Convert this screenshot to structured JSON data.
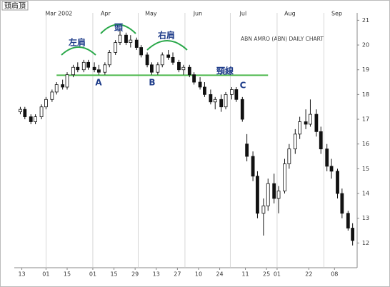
{
  "chart_data": {
    "type": "candlestick",
    "page_title": "頭肩頂",
    "chart_label": "ABN AMRO (ABN) DAILY CHART",
    "x": [
      "2002-02-12",
      "2002-02-15",
      "2002-02-19",
      "2002-02-22",
      "2002-02-26",
      "2002-03-01",
      "2002-03-05",
      "2002-03-08",
      "2002-03-12",
      "2002-03-15",
      "2002-03-19",
      "2002-03-22",
      "2002-03-26",
      "2002-03-29",
      "2002-04-02",
      "2002-04-05",
      "2002-04-09",
      "2002-04-12",
      "2002-04-16",
      "2002-04-19",
      "2002-04-23",
      "2002-04-26",
      "2002-04-30",
      "2002-05-03",
      "2002-05-07",
      "2002-05-10",
      "2002-05-14",
      "2002-05-17",
      "2002-05-21",
      "2002-05-24",
      "2002-05-28",
      "2002-05-31",
      "2002-06-04",
      "2002-06-07",
      "2002-06-11",
      "2002-06-14",
      "2002-06-18",
      "2002-06-21",
      "2002-06-25",
      "2002-06-28",
      "2002-07-02",
      "2002-07-05",
      "2002-07-09",
      "2002-07-12",
      "2002-07-16",
      "2002-07-19",
      "2002-07-23",
      "2002-07-26",
      "2002-07-30",
      "2002-08-02",
      "2002-08-06",
      "2002-08-09",
      "2002-08-13",
      "2002-08-16",
      "2002-08-20",
      "2002-08-23",
      "2002-08-27",
      "2002-08-30",
      "2002-09-03",
      "2002-09-06",
      "2002-09-10",
      "2002-09-13",
      "2002-09-17",
      "2002-09-20"
    ],
    "open": [
      17.3,
      17.4,
      17.1,
      16.9,
      17.1,
      17.5,
      17.8,
      18.1,
      18.4,
      18.3,
      18.8,
      19.1,
      19.0,
      19.3,
      19.1,
      19.0,
      18.9,
      19.2,
      19.7,
      20.1,
      20.4,
      20.1,
      20.2,
      19.9,
      19.6,
      19.2,
      18.9,
      19.2,
      19.6,
      19.5,
      19.3,
      19.0,
      19.1,
      18.8,
      18.5,
      18.3,
      18.0,
      17.7,
      17.8,
      17.5,
      18.0,
      18.2,
      17.8,
      16.0,
      15.5,
      14.7,
      13.2,
      13.5,
      14.4,
      13.8,
      14.1,
      15.2,
      15.8,
      16.4,
      16.9,
      16.8,
      17.2,
      16.5,
      15.8,
      15.1,
      14.9,
      14.0,
      13.2,
      12.6
    ],
    "high": [
      17.5,
      17.5,
      17.2,
      17.2,
      17.6,
      17.9,
      18.2,
      18.5,
      18.6,
      18.9,
      19.2,
      19.3,
      19.4,
      19.4,
      19.3,
      19.2,
      19.3,
      19.8,
      20.2,
      20.6,
      20.5,
      20.4,
      20.3,
      20.0,
      19.7,
      19.3,
      19.3,
      19.7,
      19.8,
      19.7,
      19.4,
      19.2,
      19.2,
      18.9,
      18.7,
      18.5,
      18.2,
      17.9,
      18.0,
      18.1,
      18.3,
      18.3,
      17.9,
      16.4,
      15.7,
      14.9,
      13.8,
      14.6,
      14.8,
      14.3,
      15.4,
      16.0,
      16.6,
      17.1,
      17.4,
      17.8,
      17.4,
      16.7,
      16.0,
      15.4,
      15.0,
      14.2,
      13.3,
      12.8
    ],
    "low": [
      17.2,
      17.0,
      16.8,
      16.8,
      17.0,
      17.4,
      17.7,
      18.0,
      18.2,
      18.2,
      18.7,
      18.9,
      18.9,
      19.0,
      18.9,
      18.8,
      18.8,
      19.1,
      19.6,
      20.0,
      20.0,
      19.9,
      19.8,
      19.5,
      19.1,
      18.8,
      18.8,
      19.1,
      19.4,
      19.2,
      18.9,
      18.8,
      18.7,
      18.4,
      18.2,
      17.9,
      17.6,
      17.4,
      17.3,
      17.4,
      17.8,
      17.7,
      16.9,
      15.3,
      14.5,
      13.0,
      12.3,
      13.3,
      13.6,
      13.2,
      14.0,
      15.0,
      15.6,
      16.2,
      16.6,
      16.7,
      16.3,
      15.6,
      14.9,
      14.6,
      13.8,
      13.0,
      12.5,
      11.9
    ],
    "close": [
      17.4,
      17.1,
      16.9,
      17.1,
      17.5,
      17.8,
      18.1,
      18.4,
      18.3,
      18.8,
      19.1,
      19.0,
      19.3,
      19.1,
      19.0,
      18.9,
      19.2,
      19.7,
      20.1,
      20.4,
      20.1,
      20.2,
      19.9,
      19.6,
      19.2,
      18.9,
      19.2,
      19.6,
      19.5,
      19.3,
      19.0,
      19.1,
      18.8,
      18.5,
      18.3,
      18.0,
      17.7,
      17.8,
      17.5,
      18.0,
      18.2,
      17.8,
      17.0,
      15.5,
      14.7,
      13.2,
      13.5,
      14.4,
      13.8,
      14.1,
      15.2,
      15.8,
      16.4,
      16.9,
      16.8,
      17.2,
      16.5,
      15.8,
      15.1,
      14.9,
      14.0,
      13.2,
      12.6,
      12.1
    ],
    "xlim": [
      "2002-02-08",
      "2002-09-23"
    ],
    "xticks": [
      {
        "value": "2002-02-13",
        "label": "13"
      },
      {
        "value": "2002-03-01",
        "label": "01"
      },
      {
        "value": "2002-03-15",
        "label": "15"
      },
      {
        "value": "2002-04-01",
        "label": "01"
      },
      {
        "value": "2002-04-15",
        "label": "15"
      },
      {
        "value": "2002-04-29",
        "label": "29"
      },
      {
        "value": "2002-05-13",
        "label": "13"
      },
      {
        "value": "2002-05-27",
        "label": "27"
      },
      {
        "value": "2002-06-10",
        "label": "10"
      },
      {
        "value": "2002-06-24",
        "label": "24"
      },
      {
        "value": "2002-07-11",
        "label": "11"
      },
      {
        "value": "2002-07-25",
        "label": "25"
      },
      {
        "value": "2002-08-01",
        "label": "01"
      },
      {
        "value": "2002-08-22",
        "label": "22"
      },
      {
        "value": "2002-09-08",
        "label": "08"
      }
    ],
    "month_ticks": [
      {
        "value": "2002-03-01",
        "label": "Mar 2002"
      },
      {
        "value": "2002-04-01",
        "label": "Apr"
      },
      {
        "value": "2002-05-01",
        "label": "May"
      },
      {
        "value": "2002-06-01",
        "label": "Jun"
      },
      {
        "value": "2002-07-01",
        "label": "Jul"
      },
      {
        "value": "2002-08-01",
        "label": "Aug"
      },
      {
        "value": "2002-09-01",
        "label": "Sep"
      }
    ],
    "ylim": [
      11,
      21.3
    ],
    "yticks": [
      12,
      13,
      14,
      15,
      16,
      17,
      18,
      19,
      20,
      21
    ],
    "xgrid": true,
    "up_color": "#ffffff",
    "down_color": "#111111",
    "neckline": {
      "value": 18.78,
      "from": "2002-03-08",
      "to": "2002-07-26",
      "color": "#4cb84c"
    },
    "annotations": {
      "left_shoulder": "左肩",
      "head": "頭",
      "right_shoulder": "右肩",
      "neckline": "頸線",
      "a": "A",
      "b": "B",
      "c": "C"
    }
  }
}
